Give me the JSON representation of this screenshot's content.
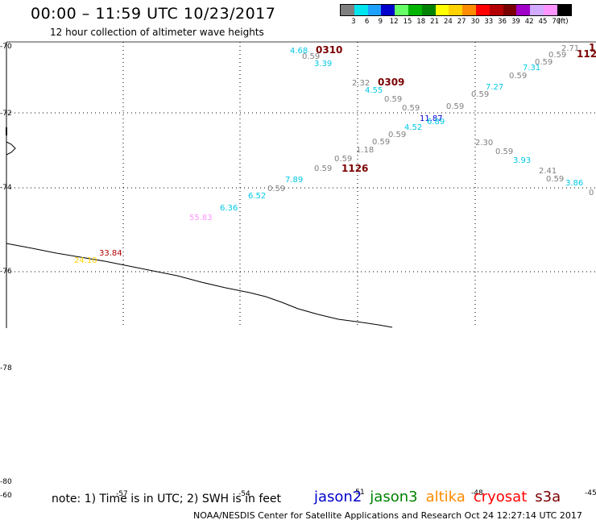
{
  "title": "00:00 – 11:59 UTC 10/23/2017",
  "subtitle": "12 hour collection of altimeter wave heights",
  "legend": {
    "unit": "(ft)",
    "bins": [
      {
        "label": "3",
        "color": "#7f7f7f"
      },
      {
        "label": "6",
        "color": "#00e5ee"
      },
      {
        "label": "9",
        "color": "#1ea0ff"
      },
      {
        "label": "12",
        "color": "#0000cd"
      },
      {
        "label": "15",
        "color": "#66ff66"
      },
      {
        "label": "18",
        "color": "#00b400"
      },
      {
        "label": "21",
        "color": "#008200"
      },
      {
        "label": "24",
        "color": "#ffff00"
      },
      {
        "label": "27",
        "color": "#ffd200"
      },
      {
        "label": "30",
        "color": "#ff8c00"
      },
      {
        "label": "33",
        "color": "#ff0000"
      },
      {
        "label": "36",
        "color": "#b40000"
      },
      {
        "label": "39",
        "color": "#7a0000"
      },
      {
        "label": "42",
        "color": "#a000c8"
      },
      {
        "label": "45",
        "color": "#d2aaff"
      },
      {
        "label": "70",
        "color": "#ff96ff"
      },
      {
        "label": "",
        "color": "#000000"
      }
    ]
  },
  "latitude_labels": [
    "-70",
    "-72",
    "-74",
    "-76",
    "-78",
    "-80"
  ],
  "longitude_labels": [
    "-60",
    "-57",
    "-54",
    "-51",
    "-48",
    "-45"
  ],
  "map_labels": [
    {
      "text": "4.68",
      "color": "#00c8e6"
    },
    {
      "text": "0.59",
      "color": "#7f7f7f"
    },
    {
      "text": "0310",
      "color": "#7a0000"
    },
    {
      "text": "3.39",
      "color": "#00c8e6"
    },
    {
      "text": "2.32",
      "color": "#7f7f7f"
    },
    {
      "text": "0309",
      "color": "#7a0000"
    },
    {
      "text": "4.55",
      "color": "#00c8e6"
    },
    {
      "text": "0.59",
      "color": "#7f7f7f"
    },
    {
      "text": "0.59",
      "color": "#7f7f7f"
    },
    {
      "text": "0.59",
      "color": "#7f7f7f"
    },
    {
      "text": "11.87",
      "color": "#0000cd"
    },
    {
      "text": "6.89",
      "color": "#00c8e6"
    },
    {
      "text": "4.52",
      "color": "#00c8e6"
    },
    {
      "text": "0.59",
      "color": "#7f7f7f"
    },
    {
      "text": "0.59",
      "color": "#7f7f7f"
    },
    {
      "text": "1.18",
      "color": "#7f7f7f"
    },
    {
      "text": "0.59",
      "color": "#7f7f7f"
    },
    {
      "text": "0.59",
      "color": "#7f7f7f"
    },
    {
      "text": "1126",
      "color": "#7a0000"
    },
    {
      "text": "7.89",
      "color": "#00c8e6"
    },
    {
      "text": "0.59",
      "color": "#7f7f7f"
    },
    {
      "text": "6.52",
      "color": "#00c8e6"
    },
    {
      "text": "6.36",
      "color": "#00c8e6"
    },
    {
      "text": "55.83",
      "color": "#ff96ff"
    },
    {
      "text": "33.84",
      "color": "#b40000"
    },
    {
      "text": "24.10",
      "color": "#ffd200"
    },
    {
      "text": "2.71",
      "color": "#7f7f7f"
    },
    {
      "text": "1",
      "color": "#7a0000"
    },
    {
      "text": "0.59",
      "color": "#7f7f7f"
    },
    {
      "text": "112",
      "color": "#7a0000"
    },
    {
      "text": "0.59",
      "color": "#7f7f7f"
    },
    {
      "text": "7.31",
      "color": "#00c8e6"
    },
    {
      "text": "0.59",
      "color": "#7f7f7f"
    },
    {
      "text": "7.27",
      "color": "#00c8e6"
    },
    {
      "text": "0.59",
      "color": "#7f7f7f"
    },
    {
      "text": "2.30",
      "color": "#7f7f7f"
    },
    {
      "text": "0.59",
      "color": "#7f7f7f"
    },
    {
      "text": "3.93",
      "color": "#00c8e6"
    },
    {
      "text": "2.41",
      "color": "#7f7f7f"
    },
    {
      "text": "0.59",
      "color": "#7f7f7f"
    },
    {
      "text": "3.86",
      "color": "#00c8e6"
    },
    {
      "text": "0",
      "color": "#7f7f7f"
    }
  ],
  "note": "note: 1) Time is in UTC; 2) SWH is in feet",
  "satellites": [
    {
      "name": "jason2",
      "color": "#0000cd"
    },
    {
      "name": "jason3",
      "color": "#008200"
    },
    {
      "name": "altika",
      "color": "#ff8c00"
    },
    {
      "name": "cryosat",
      "color": "#ff0000"
    },
    {
      "name": "s3a",
      "color": "#7a0000"
    }
  ],
  "credit": "NOAA/NESDIS Center for Satellite Applications and Research    Oct 24 12:27:14 UTC 2017"
}
